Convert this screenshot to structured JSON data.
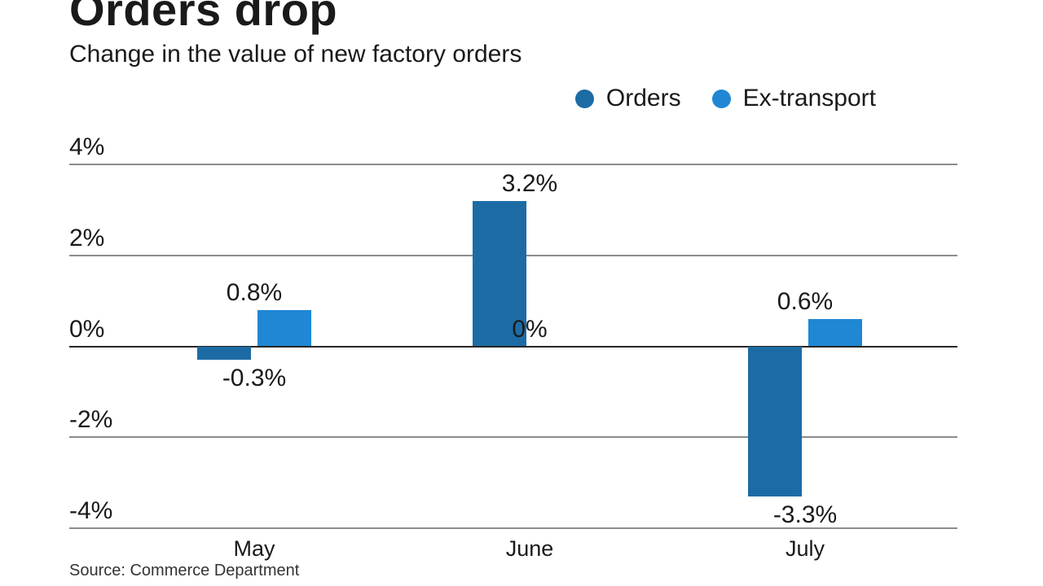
{
  "header": {
    "title": "Orders drop",
    "subtitle": "Change in the value of new factory orders"
  },
  "legend": [
    {
      "label": "Orders",
      "color": "#1d6ba5"
    },
    {
      "label": "Ex-transport",
      "color": "#1f87d3"
    }
  ],
  "chart_data": {
    "type": "bar",
    "title": "Orders drop",
    "subtitle": "Change in the value of new factory orders",
    "categories": [
      "May",
      "June",
      "July"
    ],
    "series": [
      {
        "name": "Orders",
        "color": "#1d6ba5",
        "values": [
          -0.3,
          3.2,
          -3.3
        ],
        "labels": [
          "-0.3%",
          "3.2%",
          "-3.3%"
        ]
      },
      {
        "name": "Ex-transport",
        "color": "#1f87d3",
        "values": [
          0.8,
          0,
          0.6
        ],
        "labels": [
          "0.8%",
          "0%",
          "0.6%"
        ]
      }
    ],
    "ylim": [
      -4,
      4
    ],
    "yticks": [
      4,
      2,
      0,
      -2,
      -4
    ],
    "ytick_labels": [
      "4%",
      "2%",
      "0%",
      "-2%",
      "-4%"
    ],
    "grid": true,
    "grid_color": "#8c8c8c",
    "zero_line_color": "#262626",
    "legend_position": "top-right"
  },
  "source": "Source: Commerce Department"
}
